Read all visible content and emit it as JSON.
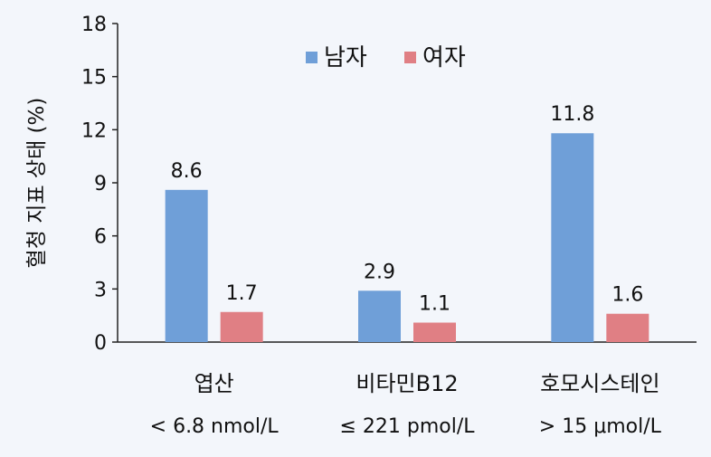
{
  "chart_data": {
    "type": "bar",
    "title": "",
    "ylabel": "혈청 지표 상태 (%)",
    "xlabel": "",
    "ylim": [
      0,
      18
    ],
    "yticks": [
      0,
      3,
      6,
      9,
      12,
      15,
      18
    ],
    "categories": [
      {
        "name": "엽산",
        "sub": "< 6.8 nmol/L"
      },
      {
        "name": "비타민B12",
        "sub": "≤ 221 pmol/L"
      },
      {
        "name": "호모시스테인",
        "sub": "> 15 μmol/L"
      }
    ],
    "series": [
      {
        "name": "남자",
        "color": "#6f9fd8",
        "values": [
          8.6,
          2.9,
          11.8
        ]
      },
      {
        "name": "여자",
        "color": "#e07f84",
        "values": [
          1.7,
          1.1,
          1.6
        ]
      }
    ],
    "legend": "top-center",
    "grid": false
  }
}
